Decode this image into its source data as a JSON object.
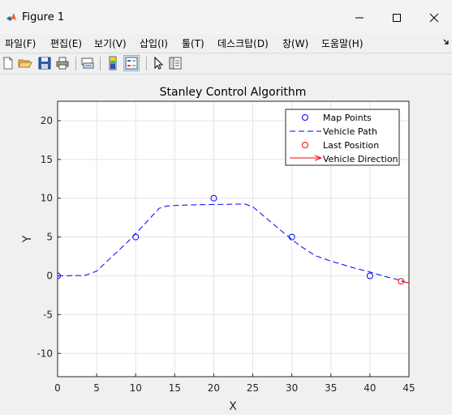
{
  "window": {
    "title": "Figure 1"
  },
  "menu": {
    "items": [
      "파일(F)",
      "편집(E)",
      "보기(V)",
      "삽입(I)",
      "툴(T)",
      "데스크탑(D)",
      "창(W)",
      "도움말(H)"
    ]
  },
  "toolbar": {
    "icons": [
      "new-figure-icon",
      "open-file-icon",
      "save-icon",
      "print-icon",
      "link-icon",
      "colorbar-icon",
      "legend-icon",
      "pointer-icon",
      "property-editor-icon"
    ]
  },
  "chart_data": {
    "type": "line",
    "title": "Stanley Control Algorithm",
    "xlabel": "X",
    "ylabel": "Y",
    "xlim": [
      0,
      45
    ],
    "ylim": [
      -13,
      22.5
    ],
    "xticks": [
      "0",
      "5",
      "10",
      "15",
      "20",
      "25",
      "30",
      "35",
      "40",
      "45"
    ],
    "yticks": [
      "-10",
      "-5",
      "0",
      "5",
      "10",
      "15",
      "20"
    ],
    "grid": true,
    "legend_position": "top-right",
    "series": [
      {
        "name": "Map Points",
        "style": "circle-markers",
        "color": "#0000ff",
        "x": [
          0,
          10,
          20,
          30,
          40
        ],
        "y": [
          0,
          5,
          10,
          5,
          0
        ]
      },
      {
        "name": "Vehicle Path",
        "style": "dashed-line",
        "color": "#0000ff",
        "x": [
          0,
          3.5,
          5,
          7,
          9,
          11,
          13,
          14,
          16,
          20,
          24,
          25,
          27,
          29,
          31,
          33,
          35,
          38,
          40,
          42,
          44,
          45
        ],
        "y": [
          0,
          0.05,
          0.6,
          2.5,
          4.4,
          6.5,
          8.7,
          9.0,
          9.1,
          9.2,
          9.25,
          8.9,
          7.2,
          5.5,
          3.9,
          2.6,
          1.9,
          1.0,
          0.5,
          -0.1,
          -0.6,
          -1.0
        ]
      },
      {
        "name": "Last Position",
        "style": "circle-marker",
        "color": "#ff0000",
        "x": [
          44
        ],
        "y": [
          -0.7
        ]
      },
      {
        "name": "Vehicle Direction",
        "style": "arrow",
        "color": "#ff0000",
        "x": [
          44,
          45
        ],
        "y": [
          -0.7,
          -1.0
        ]
      }
    ]
  }
}
